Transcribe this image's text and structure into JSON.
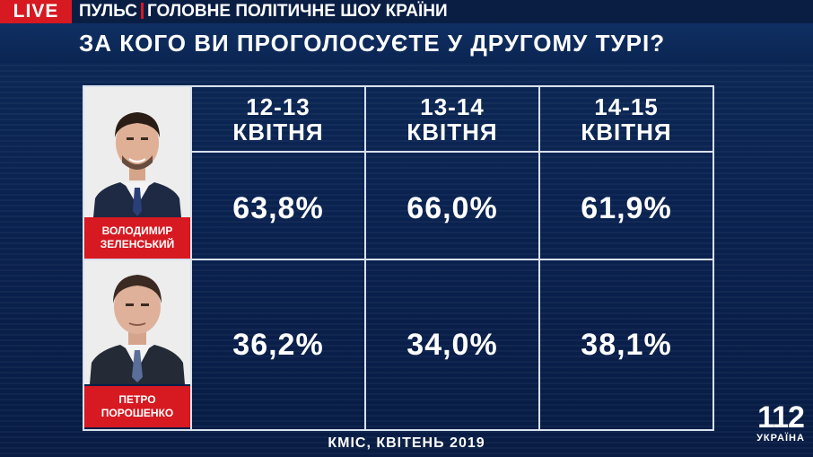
{
  "header": {
    "live_label": "LIVE",
    "show_name": "ПУЛЬС",
    "show_tagline": "ГОЛОВНЕ ПОЛІТИЧНЕ ШОУ КРАЇНИ",
    "question": "ЗА КОГО ВИ ПРОГОЛОСУЄТЕ У ДРУГОМУ ТУРІ?"
  },
  "columns": [
    {
      "dates": "12-13",
      "month": "КВІТНЯ"
    },
    {
      "dates": "13-14",
      "month": "КВІТНЯ"
    },
    {
      "dates": "14-15",
      "month": "КВІТНЯ"
    }
  ],
  "candidates": [
    {
      "first": "ВОЛОДИМИР",
      "last": "ЗЕЛЕНСЬКИЙ",
      "values": [
        "63,8%",
        "66,0%",
        "61,9%"
      ]
    },
    {
      "first": "ПЕТРО",
      "last": "ПОРОШЕНКО",
      "values": [
        "36,2%",
        "34,0%",
        "38,1%"
      ]
    }
  ],
  "source": "КМІС, КВІТЕНЬ 2019",
  "channel": {
    "number": "112",
    "country": "УКРАЇНА"
  },
  "colors": {
    "accent_red": "#d71921",
    "background": "#0b2552",
    "grid_line": "#d8e1ee"
  }
}
